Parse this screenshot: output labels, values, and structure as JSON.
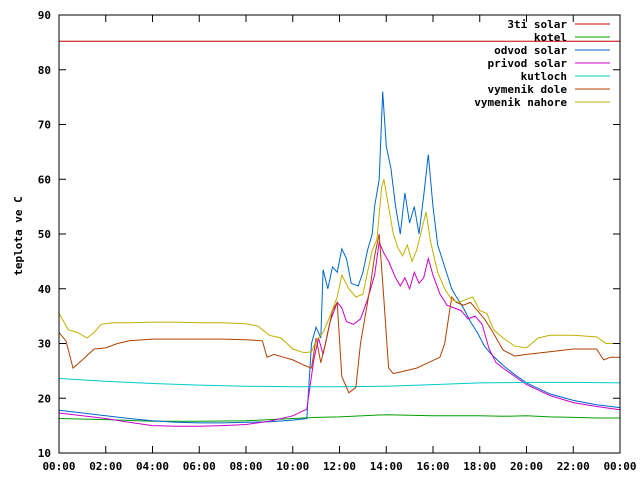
{
  "chart_data": {
    "type": "line",
    "title": "",
    "xlabel": "",
    "ylabel": "teplota ve C",
    "xlim": [
      "00:00",
      "00:00"
    ],
    "ylim": [
      10,
      90
    ],
    "grid": false,
    "legend_position": "top-right",
    "x_ticks": [
      "00:00",
      "02:00",
      "04:00",
      "06:00",
      "08:00",
      "10:00",
      "12:00",
      "14:00",
      "16:00",
      "18:00",
      "20:00",
      "22:00",
      "00:00"
    ],
    "y_ticks": [
      "10",
      "20",
      "30",
      "40",
      "50",
      "60",
      "70",
      "80",
      "90"
    ],
    "series": [
      {
        "name": "3ti solar",
        "color": "#cc0000",
        "points": [
          [
            0,
            85.2
          ],
          [
            24,
            85.2
          ]
        ]
      },
      {
        "name": "kotel",
        "color": "#00a000",
        "points": [
          [
            0,
            16.3
          ],
          [
            2,
            16.1
          ],
          [
            4,
            15.8
          ],
          [
            6,
            15.8
          ],
          [
            8,
            15.9
          ],
          [
            10,
            16.3
          ],
          [
            11,
            16.5
          ],
          [
            12,
            16.6
          ],
          [
            13,
            16.8
          ],
          [
            14,
            17.0
          ],
          [
            15,
            16.9
          ],
          [
            16,
            16.8
          ],
          [
            17,
            16.8
          ],
          [
            18,
            16.8
          ],
          [
            19,
            16.7
          ],
          [
            20,
            16.8
          ],
          [
            21,
            16.6
          ],
          [
            22,
            16.5
          ],
          [
            23,
            16.4
          ],
          [
            24,
            16.4
          ]
        ]
      },
      {
        "name": "odvod solar",
        "color": "#0066cc",
        "points": [
          [
            0,
            17.8
          ],
          [
            1,
            17.3
          ],
          [
            2,
            16.8
          ],
          [
            3,
            16.3
          ],
          [
            4,
            15.9
          ],
          [
            5,
            15.6
          ],
          [
            6,
            15.5
          ],
          [
            7,
            15.5
          ],
          [
            8,
            15.6
          ],
          [
            9,
            15.7
          ],
          [
            10,
            16.0
          ],
          [
            10.6,
            16.3
          ],
          [
            10.8,
            30.0
          ],
          [
            11.0,
            33.0
          ],
          [
            11.2,
            31.0
          ],
          [
            11.3,
            43.5
          ],
          [
            11.5,
            40.0
          ],
          [
            11.7,
            44.0
          ],
          [
            11.9,
            43.0
          ],
          [
            12.1,
            47.3
          ],
          [
            12.3,
            45.5
          ],
          [
            12.5,
            41.0
          ],
          [
            12.8,
            40.5
          ],
          [
            13.0,
            43.0
          ],
          [
            13.2,
            47.0
          ],
          [
            13.4,
            50.0
          ],
          [
            13.5,
            55.0
          ],
          [
            13.7,
            60.0
          ],
          [
            13.85,
            76.0
          ],
          [
            14.0,
            66.0
          ],
          [
            14.2,
            62.0
          ],
          [
            14.4,
            55.0
          ],
          [
            14.6,
            50.0
          ],
          [
            14.8,
            57.5
          ],
          [
            15.0,
            52.0
          ],
          [
            15.2,
            55.0
          ],
          [
            15.4,
            50.0
          ],
          [
            15.6,
            57.0
          ],
          [
            15.8,
            64.5
          ],
          [
            16.0,
            55.0
          ],
          [
            16.2,
            48.0
          ],
          [
            16.5,
            44.0
          ],
          [
            16.8,
            40.0
          ],
          [
            17.0,
            38.5
          ],
          [
            17.3,
            36.5
          ],
          [
            17.6,
            34.0
          ],
          [
            17.9,
            32.0
          ],
          [
            18.2,
            29.5
          ],
          [
            18.5,
            28.0
          ],
          [
            19.0,
            26.0
          ],
          [
            19.5,
            24.3
          ],
          [
            20.0,
            22.8
          ],
          [
            21.0,
            20.8
          ],
          [
            22.0,
            19.6
          ],
          [
            23.0,
            18.8
          ],
          [
            24.0,
            18.3
          ]
        ]
      },
      {
        "name": "privod solar",
        "color": "#cc00cc",
        "points": [
          [
            0,
            17.3
          ],
          [
            1,
            16.8
          ],
          [
            2,
            16.3
          ],
          [
            3,
            15.6
          ],
          [
            4,
            15.0
          ],
          [
            5,
            14.9
          ],
          [
            6,
            14.9
          ],
          [
            7,
            15.0
          ],
          [
            8,
            15.2
          ],
          [
            9,
            15.8
          ],
          [
            10,
            16.8
          ],
          [
            10.6,
            18.0
          ],
          [
            10.9,
            27.0
          ],
          [
            11.1,
            31.0
          ],
          [
            11.3,
            28.0
          ],
          [
            11.6,
            34.0
          ],
          [
            11.9,
            37.5
          ],
          [
            12.1,
            36.5
          ],
          [
            12.3,
            34.0
          ],
          [
            12.6,
            33.5
          ],
          [
            12.9,
            34.5
          ],
          [
            13.2,
            38.0
          ],
          [
            13.5,
            42.5
          ],
          [
            13.7,
            48.5
          ],
          [
            13.9,
            46.5
          ],
          [
            14.1,
            45.0
          ],
          [
            14.4,
            42.0
          ],
          [
            14.6,
            40.5
          ],
          [
            14.8,
            42.0
          ],
          [
            15.0,
            40.0
          ],
          [
            15.2,
            43.0
          ],
          [
            15.4,
            41.0
          ],
          [
            15.6,
            42.0
          ],
          [
            15.8,
            45.5
          ],
          [
            16.0,
            42.5
          ],
          [
            16.3,
            39.0
          ],
          [
            16.6,
            37.0
          ],
          [
            16.9,
            36.5
          ],
          [
            17.2,
            36.0
          ],
          [
            17.5,
            34.5
          ],
          [
            17.8,
            35.0
          ],
          [
            18.1,
            33.5
          ],
          [
            18.4,
            29.0
          ],
          [
            18.7,
            26.5
          ],
          [
            19.0,
            25.5
          ],
          [
            19.5,
            24.0
          ],
          [
            20.0,
            22.5
          ],
          [
            21.0,
            20.5
          ],
          [
            22.0,
            19.2
          ],
          [
            23.0,
            18.5
          ],
          [
            24.0,
            17.9
          ]
        ]
      },
      {
        "name": "kutloch",
        "color": "#00cccc",
        "points": [
          [
            0,
            23.6
          ],
          [
            2,
            23.1
          ],
          [
            4,
            22.7
          ],
          [
            6,
            22.4
          ],
          [
            8,
            22.2
          ],
          [
            10,
            22.1
          ],
          [
            12,
            22.1
          ],
          [
            14,
            22.2
          ],
          [
            16,
            22.5
          ],
          [
            18,
            22.8
          ],
          [
            20,
            22.9
          ],
          [
            22,
            22.9
          ],
          [
            24,
            22.8
          ]
        ]
      },
      {
        "name": "vymenik dole",
        "color": "#b04000",
        "points": [
          [
            0,
            32.0
          ],
          [
            0.3,
            30.5
          ],
          [
            0.6,
            25.5
          ],
          [
            1.0,
            27.0
          ],
          [
            1.5,
            29.0
          ],
          [
            2.0,
            29.2
          ],
          [
            2.5,
            30.0
          ],
          [
            3.0,
            30.5
          ],
          [
            4.0,
            30.8
          ],
          [
            5.0,
            30.8
          ],
          [
            6.0,
            30.8
          ],
          [
            7.0,
            30.8
          ],
          [
            8.0,
            30.7
          ],
          [
            8.7,
            30.5
          ],
          [
            8.9,
            27.5
          ],
          [
            9.2,
            28.0
          ],
          [
            9.6,
            27.5
          ],
          [
            10.0,
            27.0
          ],
          [
            10.5,
            26.0
          ],
          [
            10.8,
            25.5
          ],
          [
            11.0,
            31.0
          ],
          [
            11.2,
            26.5
          ],
          [
            11.4,
            30.0
          ],
          [
            11.7,
            36.0
          ],
          [
            11.9,
            37.5
          ],
          [
            12.1,
            24.0
          ],
          [
            12.4,
            21.0
          ],
          [
            12.7,
            22.0
          ],
          [
            12.9,
            30.0
          ],
          [
            13.1,
            35.0
          ],
          [
            13.3,
            40.0
          ],
          [
            13.5,
            46.0
          ],
          [
            13.7,
            50.0
          ],
          [
            13.9,
            38.0
          ],
          [
            14.1,
            25.5
          ],
          [
            14.3,
            24.5
          ],
          [
            14.8,
            25.0
          ],
          [
            15.3,
            25.5
          ],
          [
            15.8,
            26.5
          ],
          [
            16.3,
            27.5
          ],
          [
            16.5,
            30.0
          ],
          [
            16.8,
            38.5
          ],
          [
            17.0,
            37.5
          ],
          [
            17.3,
            37.0
          ],
          [
            17.6,
            37.5
          ],
          [
            17.9,
            36.0
          ],
          [
            18.2,
            34.5
          ],
          [
            18.5,
            32.5
          ],
          [
            19.0,
            28.8
          ],
          [
            19.5,
            27.7
          ],
          [
            20.0,
            28.0
          ],
          [
            21.0,
            28.5
          ],
          [
            22.0,
            29.0
          ],
          [
            23.0,
            29.0
          ],
          [
            23.3,
            27.0
          ],
          [
            23.6,
            27.5
          ],
          [
            24.0,
            27.5
          ]
        ]
      },
      {
        "name": "vymenik nahore",
        "color": "#c0b000",
        "points": [
          [
            0,
            35.5
          ],
          [
            0.2,
            34.0
          ],
          [
            0.4,
            32.5
          ],
          [
            0.8,
            32.0
          ],
          [
            1.2,
            31.0
          ],
          [
            1.5,
            32.0
          ],
          [
            1.8,
            33.5
          ],
          [
            2.3,
            33.8
          ],
          [
            3.0,
            33.8
          ],
          [
            4.0,
            33.9
          ],
          [
            5.0,
            33.9
          ],
          [
            6.0,
            33.8
          ],
          [
            7.0,
            33.8
          ],
          [
            8.0,
            33.6
          ],
          [
            8.5,
            33.2
          ],
          [
            9.0,
            31.5
          ],
          [
            9.5,
            31.0
          ],
          [
            10.0,
            29.0
          ],
          [
            10.5,
            28.3
          ],
          [
            10.8,
            28.5
          ],
          [
            11.0,
            30.5
          ],
          [
            11.3,
            32.0
          ],
          [
            11.6,
            35.0
          ],
          [
            11.9,
            38.5
          ],
          [
            12.1,
            42.5
          ],
          [
            12.4,
            40.0
          ],
          [
            12.7,
            38.5
          ],
          [
            13.0,
            39.0
          ],
          [
            13.2,
            43.0
          ],
          [
            13.4,
            47.0
          ],
          [
            13.6,
            49.0
          ],
          [
            13.8,
            58.5
          ],
          [
            13.9,
            60.0
          ],
          [
            14.1,
            55.0
          ],
          [
            14.3,
            50.0
          ],
          [
            14.5,
            47.5
          ],
          [
            14.7,
            46.0
          ],
          [
            14.9,
            48.0
          ],
          [
            15.1,
            45.0
          ],
          [
            15.3,
            47.0
          ],
          [
            15.5,
            50.5
          ],
          [
            15.7,
            54.0
          ],
          [
            15.9,
            48.5
          ],
          [
            16.2,
            43.0
          ],
          [
            16.5,
            40.0
          ],
          [
            16.8,
            38.0
          ],
          [
            17.1,
            37.5
          ],
          [
            17.4,
            38.0
          ],
          [
            17.7,
            38.5
          ],
          [
            18.0,
            36.0
          ],
          [
            18.3,
            35.5
          ],
          [
            18.6,
            32.5
          ],
          [
            19.0,
            31.0
          ],
          [
            19.5,
            29.5
          ],
          [
            20.0,
            29.2
          ],
          [
            20.5,
            31.0
          ],
          [
            21.0,
            31.5
          ],
          [
            22.0,
            31.5
          ],
          [
            23.0,
            31.2
          ],
          [
            23.4,
            30.0
          ],
          [
            24.0,
            30.0
          ]
        ]
      }
    ]
  }
}
